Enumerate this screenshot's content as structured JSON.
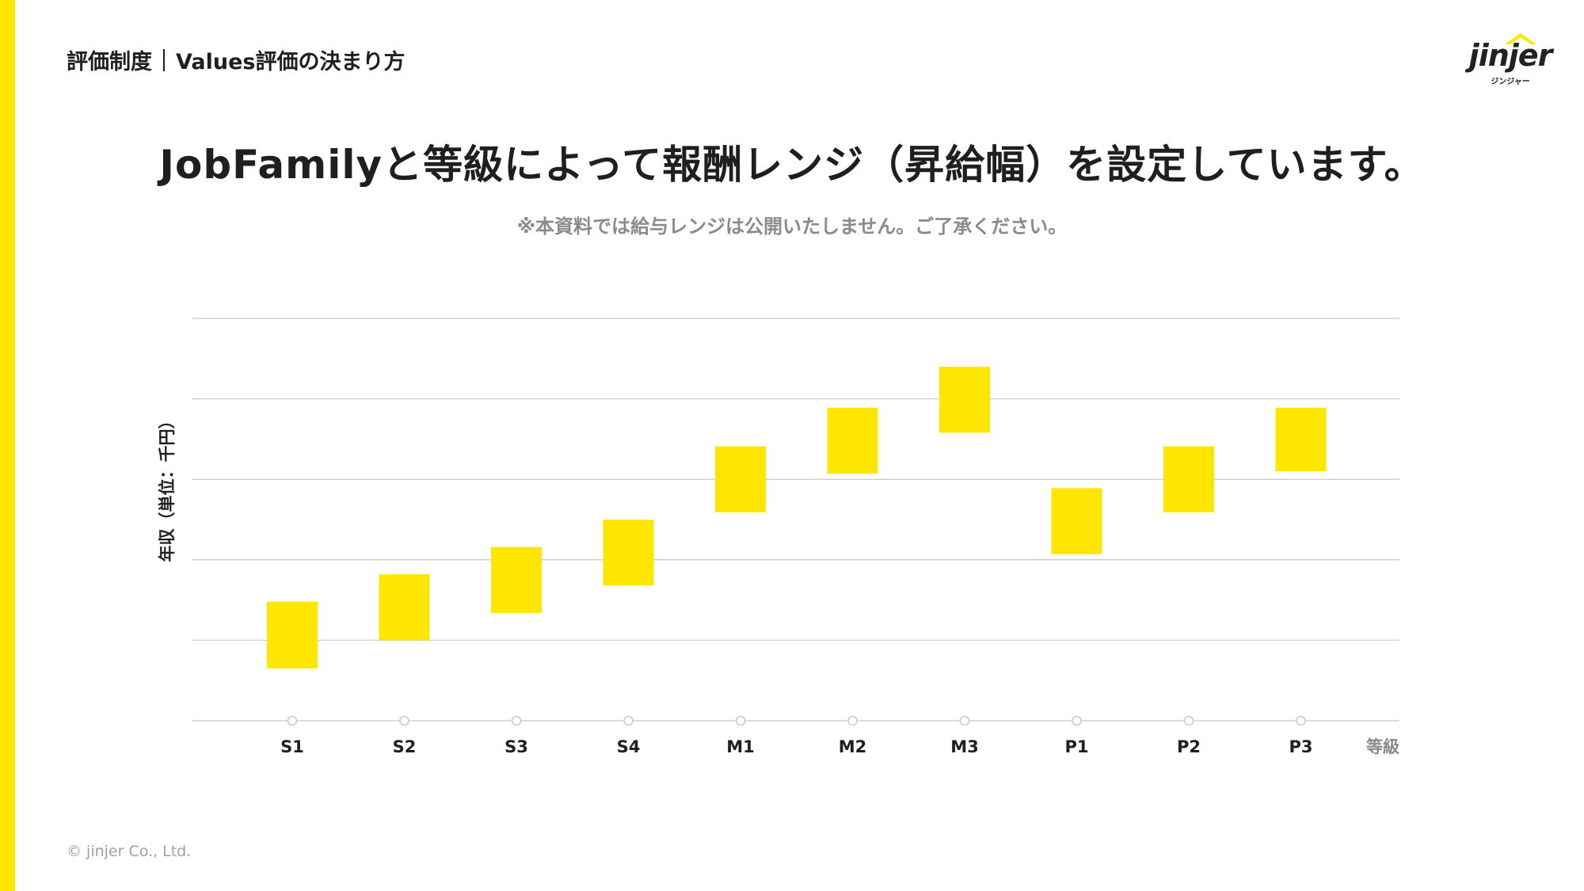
{
  "header": {
    "section": "評価制度",
    "page": "Values評価の決まり方"
  },
  "logo": {
    "wordmark": "jinjer",
    "kana": "ジンジャー"
  },
  "headline": "JobFamilyと等級によって報酬レンジ（昇給幅）を設定しています。",
  "note": "※本資料では給与レンジは公開いたしません。ご了承ください。",
  "colors": {
    "accent": "#ffe600",
    "text": "#1f1f1f",
    "muted": "#8a8a8a",
    "grid": "#d0d0d0"
  },
  "chart_data": {
    "type": "bar",
    "subtype": "floating-range",
    "ylabel": "年収（単位：千円）",
    "xlabel": "等級",
    "categories": [
      "S1",
      "S2",
      "S3",
      "S4",
      "M1",
      "M2",
      "M3",
      "P1",
      "P2",
      "P3"
    ],
    "series": [
      {
        "color": "#ffe600",
        "ranges": [
          [
            0.65,
            1.48
          ],
          [
            1.0,
            1.82
          ],
          [
            1.34,
            2.16
          ],
          [
            1.68,
            2.5
          ],
          [
            2.59,
            3.41
          ],
          [
            3.07,
            3.89
          ],
          [
            3.58,
            4.4
          ],
          [
            2.07,
            2.89
          ],
          [
            2.59,
            3.41
          ],
          [
            3.1,
            3.89
          ]
        ]
      }
    ],
    "ylim": [
      0,
      5
    ],
    "y_tick_labels_shown": false,
    "grid": true
  },
  "footer": {
    "copyright": "© jinjer Co., Ltd."
  }
}
